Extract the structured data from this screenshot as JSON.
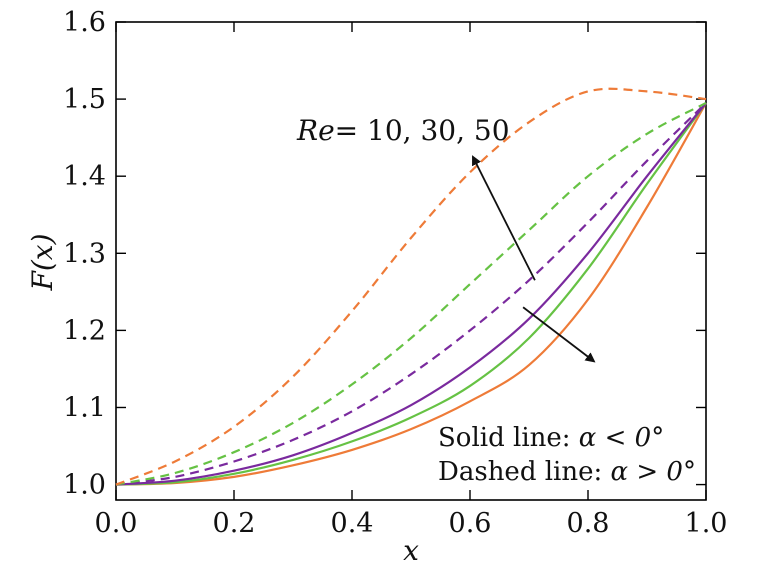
{
  "chart_data": {
    "type": "line",
    "xlabel": "x",
    "ylabel": "F(x)",
    "xlim": [
      0.0,
      1.0
    ],
    "ylim": [
      0.98,
      1.6
    ],
    "xticks": [
      "0.0",
      "0.2",
      "0.4",
      "0.6",
      "0.8",
      "1.0"
    ],
    "yticks": [
      "1.0",
      "1.1",
      "1.2",
      "1.3",
      "1.4",
      "1.5",
      "1.6"
    ],
    "grid": false,
    "colors": {
      "re10": "#ee7b38",
      "re30": "#66c244",
      "re50": "#7a2a9e"
    },
    "series": [
      {
        "style": "solid",
        "color_key": "re10",
        "x": [
          0.0,
          0.1,
          0.2,
          0.3,
          0.4,
          0.5,
          0.6,
          0.7,
          0.8,
          0.9,
          1.0
        ],
        "y": [
          1.0,
          1.002,
          1.01,
          1.025,
          1.045,
          1.072,
          1.108,
          1.155,
          1.24,
          1.36,
          1.495
        ]
      },
      {
        "style": "solid",
        "color_key": "re30",
        "x": [
          0.0,
          0.1,
          0.2,
          0.3,
          0.4,
          0.5,
          0.6,
          0.7,
          0.8,
          0.9,
          1.0
        ],
        "y": [
          1.0,
          1.003,
          1.014,
          1.032,
          1.056,
          1.087,
          1.128,
          1.19,
          1.28,
          1.39,
          1.495
        ]
      },
      {
        "style": "solid",
        "color_key": "re50",
        "x": [
          0.0,
          0.1,
          0.2,
          0.3,
          0.4,
          0.5,
          0.6,
          0.7,
          0.8,
          0.9,
          1.0
        ],
        "y": [
          1.0,
          1.005,
          1.018,
          1.038,
          1.067,
          1.103,
          1.152,
          1.215,
          1.3,
          1.4,
          1.495
        ]
      },
      {
        "style": "dashed",
        "color_key": "re50",
        "x": [
          0.0,
          0.1,
          0.2,
          0.3,
          0.4,
          0.5,
          0.6,
          0.7,
          0.8,
          0.9,
          1.0
        ],
        "y": [
          1.0,
          1.01,
          1.03,
          1.058,
          1.095,
          1.143,
          1.2,
          1.265,
          1.34,
          1.42,
          1.495
        ]
      },
      {
        "style": "dashed",
        "color_key": "re30",
        "x": [
          0.0,
          0.1,
          0.2,
          0.3,
          0.4,
          0.5,
          0.6,
          0.7,
          0.8,
          0.9,
          1.0
        ],
        "y": [
          1.0,
          1.015,
          1.042,
          1.08,
          1.13,
          1.19,
          1.26,
          1.33,
          1.4,
          1.455,
          1.495
        ]
      },
      {
        "style": "dashed",
        "color_key": "re10",
        "x": [
          0.0,
          0.1,
          0.2,
          0.3,
          0.4,
          0.5,
          0.6,
          0.7,
          0.8,
          0.9,
          1.0
        ],
        "y": [
          1.0,
          1.03,
          1.075,
          1.14,
          1.225,
          1.32,
          1.405,
          1.47,
          1.51,
          1.51,
          1.5
        ]
      }
    ],
    "annotations": {
      "re_symbol": "Re",
      "re_values": "= 10, 30, 50",
      "solid_text": "Solid line: ",
      "dashed_text": "Dashed line: ",
      "solid_cond": "α < 0°",
      "dashed_cond": "α > 0°"
    },
    "arrows": [
      {
        "from": [
          0.71,
          1.265
        ],
        "to": [
          0.605,
          1.425
        ]
      },
      {
        "from": [
          0.69,
          1.23
        ],
        "to": [
          0.81,
          1.16
        ]
      }
    ]
  }
}
